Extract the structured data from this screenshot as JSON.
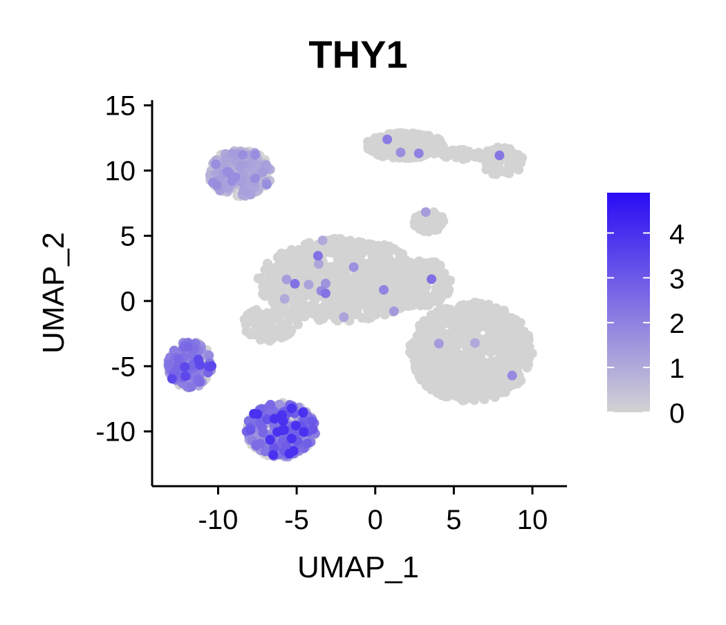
{
  "chart_data": {
    "type": "scatter",
    "title": "THY1",
    "xlabel": "UMAP_1",
    "ylabel": "UMAP_2",
    "xlim": [
      -14.2,
      12.2
    ],
    "ylim": [
      -14.2,
      15.4
    ],
    "xticks": [
      -10,
      -5,
      0,
      5,
      10
    ],
    "yticks": [
      -10,
      -5,
      0,
      5,
      10,
      15
    ],
    "grid": false,
    "legend": {
      "type": "colorbar",
      "placement": "right",
      "min": 0,
      "max": 4.9,
      "ticks": [
        0,
        1,
        2,
        3,
        4
      ],
      "low_color": "#d3d3d3",
      "high_color": "#2a0cf5"
    },
    "background_color": "#d3d3d3",
    "clusters": [
      {
        "label": "top-center",
        "cx": 1.9,
        "cy": 11.9,
        "rx": 2.5,
        "ry": 1.0,
        "n": 260,
        "expr": 0
      },
      {
        "label": "top-right",
        "cx": 8.0,
        "cy": 10.7,
        "rx": 1.4,
        "ry": 1.1,
        "n": 90,
        "expr": 0
      },
      {
        "label": "bridge-top",
        "cx": 5.4,
        "cy": 11.2,
        "rx": 1.5,
        "ry": 0.4,
        "n": 40,
        "expr": 0
      },
      {
        "label": "center",
        "cx": -2.2,
        "cy": 1.6,
        "rx": 5.3,
        "ry": 3.2,
        "n": 700,
        "expr": 0
      },
      {
        "label": "center-right",
        "cx": 2.5,
        "cy": 1.4,
        "rx": 2.4,
        "ry": 1.9,
        "n": 200,
        "expr": 0
      },
      {
        "label": "tail-left",
        "cx": -6.7,
        "cy": -1.8,
        "rx": 1.8,
        "ry": 1.3,
        "n": 80,
        "expr": 0
      },
      {
        "label": "small-top",
        "cx": 3.4,
        "cy": 6.1,
        "rx": 1.0,
        "ry": 0.8,
        "n": 50,
        "expr": 0
      },
      {
        "label": "bottom-right",
        "cx": 6.1,
        "cy": -3.9,
        "rx": 3.9,
        "ry": 3.8,
        "n": 700,
        "expr": 0
      },
      {
        "label": "top-left",
        "cx": -8.6,
        "cy": 9.8,
        "rx": 2.0,
        "ry": 1.8,
        "n": 280,
        "expr": 0.9
      },
      {
        "label": "left-mid",
        "cx": -11.8,
        "cy": -4.9,
        "rx": 1.4,
        "ry": 1.8,
        "n": 240,
        "expr": 1.8
      },
      {
        "label": "bottom-left",
        "cx": -6.0,
        "cy": -9.9,
        "rx": 2.2,
        "ry": 2.1,
        "n": 420,
        "expr": 2.1
      }
    ]
  }
}
